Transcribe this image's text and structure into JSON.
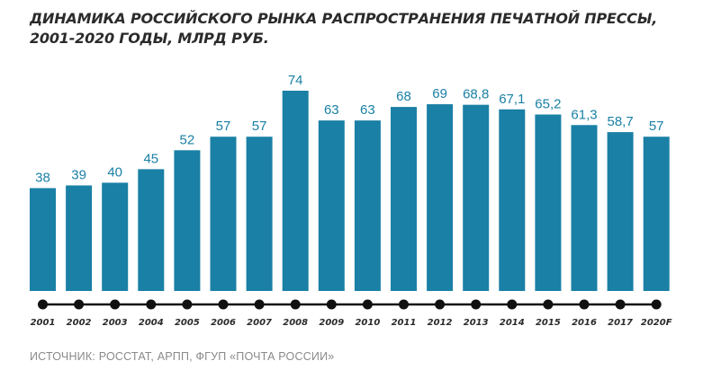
{
  "title_line1": "ДИНАМИКА РОССИЙСКОГО РЫНКА РАСПРОСТРАНЕНИЯ ПЕЧАТНОЙ ПРЕССЫ,",
  "title_line2": "2001-2020 ГОДЫ, МЛРД РУБ.",
  "source": "ИСТОЧНИК: РОССТАТ, АРПП, ФГУП «ПОЧТА РОССИИ»",
  "colors": {
    "bar": "#1a80a5",
    "label": "#1a80a5",
    "timeline": "#111111",
    "text": "#2b2b2b"
  },
  "chart_data": {
    "type": "bar",
    "title": "ДИНАМИКА РОССИЙСКОГО РЫНКА РАСПРОСТРАНЕНИЯ ПЕЧАТНОЙ ПРЕССЫ, 2001-2020 ГОДЫ, МЛРД РУБ.",
    "categories": [
      "2001",
      "2002",
      "2003",
      "2004",
      "2005",
      "2006",
      "2007",
      "2008",
      "2009",
      "2010",
      "2011",
      "2012",
      "2013",
      "2014",
      "2015",
      "2016",
      "2017",
      "2020F"
    ],
    "values": [
      38,
      39,
      40,
      45,
      52,
      57,
      57,
      74,
      63,
      63,
      68,
      69,
      68.8,
      67.1,
      65.2,
      61.3,
      58.7,
      57
    ],
    "data_labels": [
      "38",
      "39",
      "40",
      "45",
      "52",
      "57",
      "57",
      "74",
      "63",
      "63",
      "68",
      "69",
      "68,8",
      "67,1",
      "65,2",
      "61,3",
      "58,7",
      "57"
    ],
    "xlabel": "",
    "ylabel": "",
    "ylim": [
      0,
      74
    ],
    "grid": false,
    "legend": "none"
  }
}
